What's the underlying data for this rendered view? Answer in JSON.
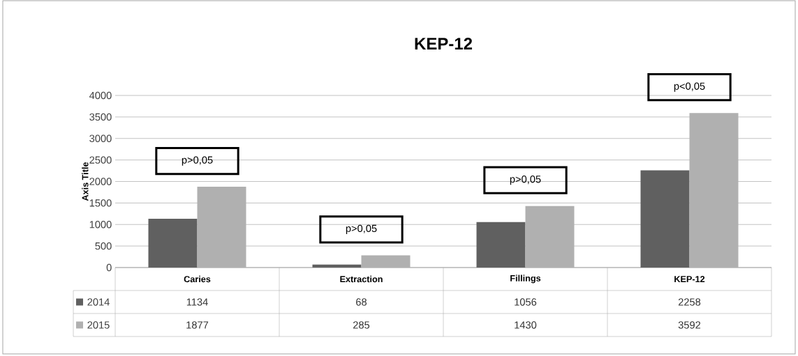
{
  "chart_data": {
    "type": "bar",
    "title": "KEP-12",
    "ylabel": "Axis Title",
    "categories": [
      "Caries",
      "Extraction",
      "Fillings",
      "KEP-12"
    ],
    "series": [
      {
        "name": "2014",
        "color": "#606060",
        "values": [
          1134,
          68,
          1056,
          2258
        ]
      },
      {
        "name": "2015",
        "color": "#b0b0b0",
        "values": [
          1877,
          285,
          1430,
          3592
        ]
      }
    ],
    "ylim": [
      0,
      4000
    ],
    "yticks": [
      0,
      500,
      1000,
      1500,
      2000,
      2500,
      3000,
      3500,
      4000
    ],
    "grid": "y",
    "legend": "bottom",
    "data_labels": true,
    "annotations": [
      "p>0,05",
      "p>0,05",
      "p>0,05",
      "p<0,05"
    ]
  }
}
